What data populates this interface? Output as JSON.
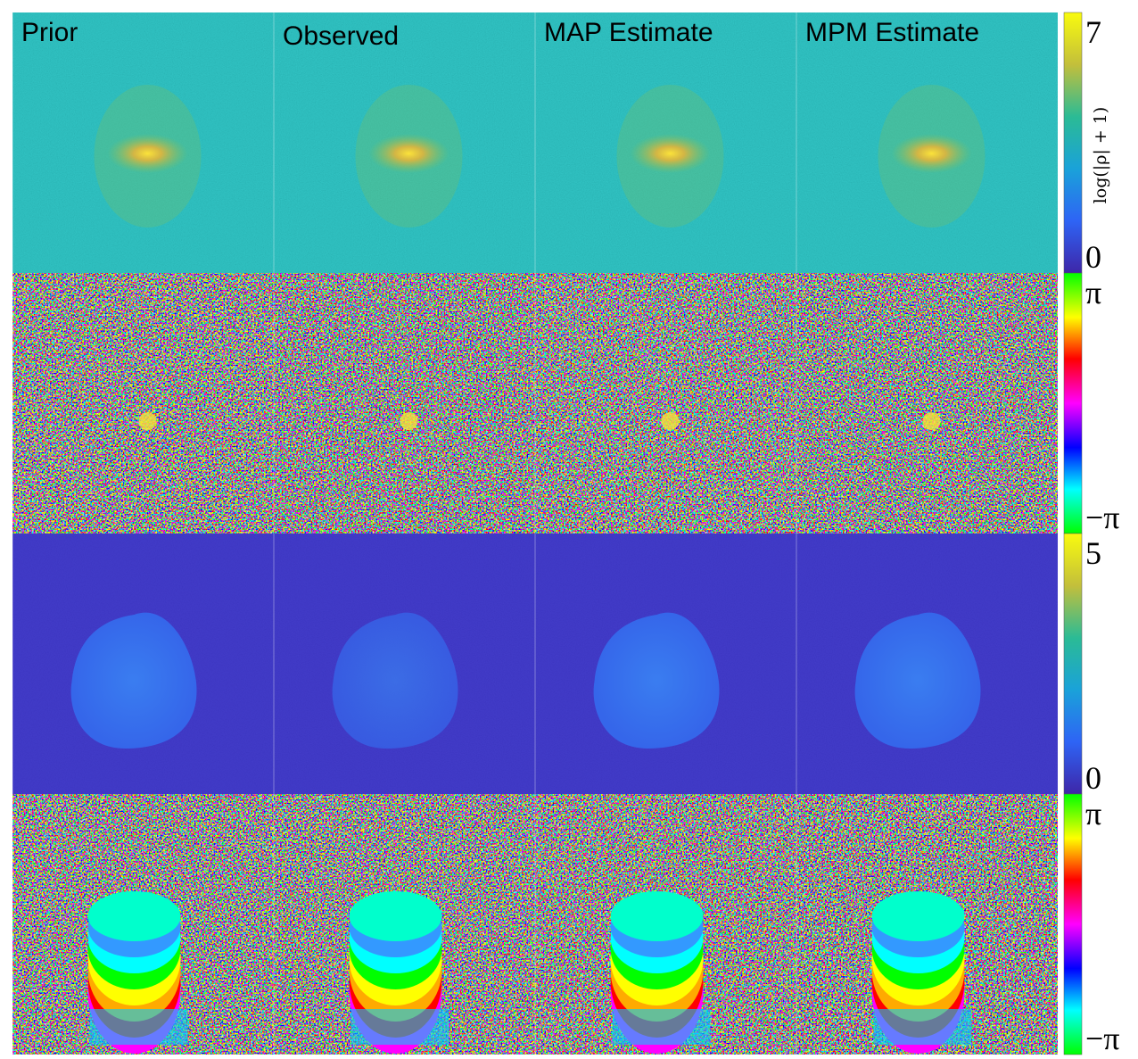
{
  "columns": [
    "Prior",
    "Observed",
    "MAP Estimate",
    "MPM Estimate"
  ],
  "colorbars": [
    {
      "label": "log(|ρ| + 1)",
      "top": 7,
      "bottom": 0
    },
    {
      "top": "π",
      "bottom": "−π"
    },
    {
      "top": 5,
      "bottom": 0
    },
    {
      "top": "π",
      "bottom": "−π"
    }
  ]
}
